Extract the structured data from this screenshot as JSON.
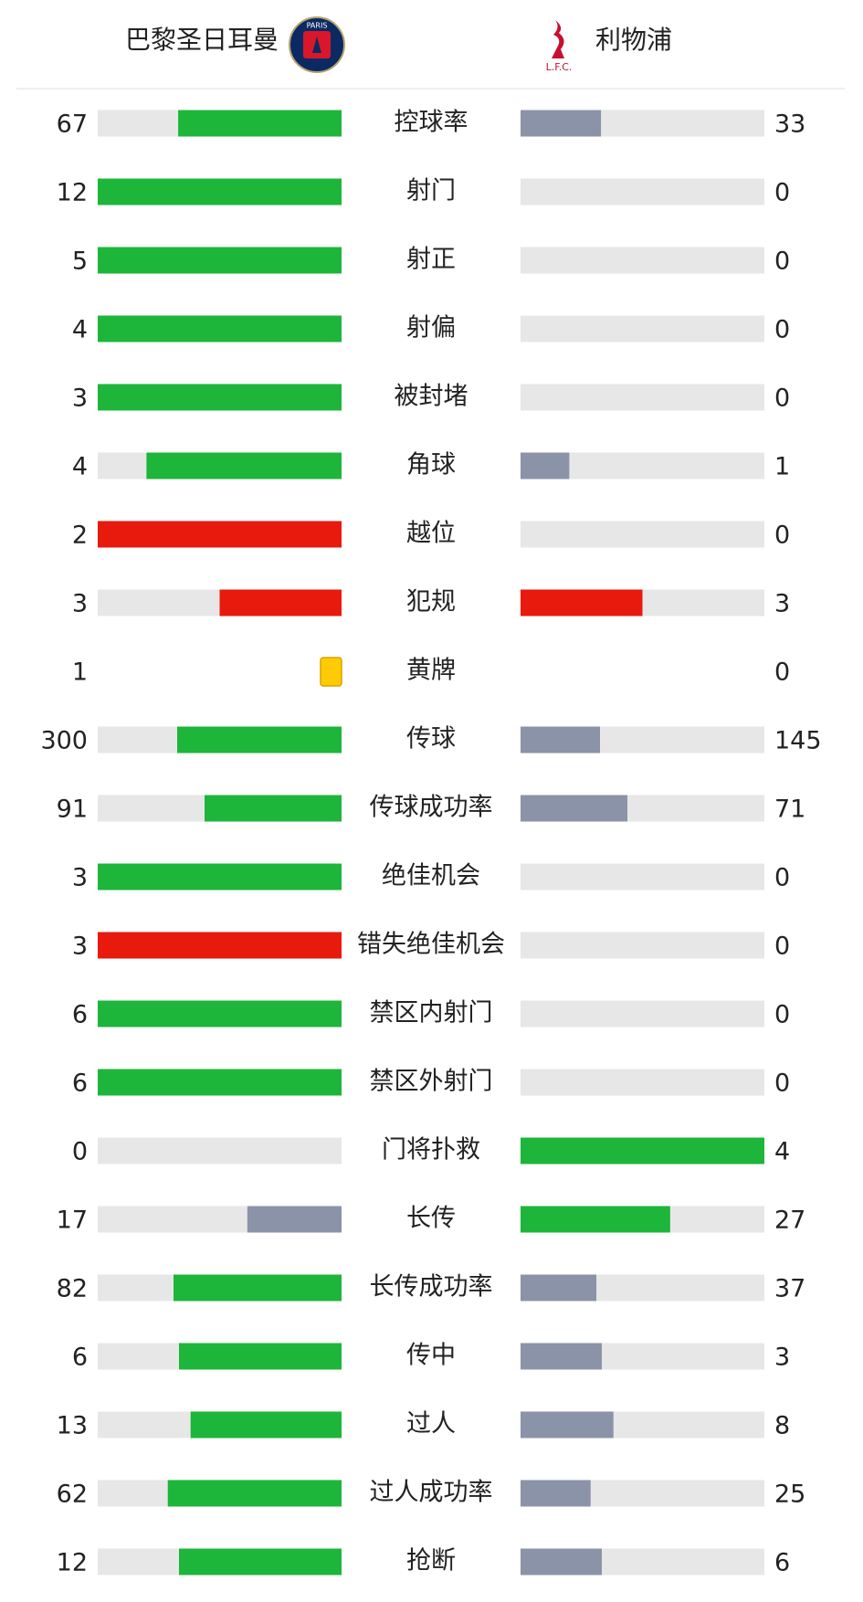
{
  "header": {
    "home": "巴黎圣日耳曼",
    "home_badge": "PARIS",
    "away": "利物浦",
    "away_badge": "L.F.C."
  },
  "track_color": "#e7e7e7",
  "rows": [
    {
      "label": "控球率",
      "home": 67,
      "away": 33,
      "home_color": "#1db53a",
      "away_color": "#8a93a7"
    },
    {
      "label": "射门",
      "home": 12,
      "away": 0,
      "home_color": "#1db53a",
      "away_color": "#8a93a7"
    },
    {
      "label": "射正",
      "home": 5,
      "away": 0,
      "home_color": "#1db53a",
      "away_color": "#8a93a7"
    },
    {
      "label": "射偏",
      "home": 4,
      "away": 0,
      "home_color": "#1db53a",
      "away_color": "#8a93a7"
    },
    {
      "label": "被封堵",
      "home": 3,
      "away": 0,
      "home_color": "#1db53a",
      "away_color": "#8a93a7"
    },
    {
      "label": "角球",
      "home": 4,
      "away": 1,
      "home_color": "#1db53a",
      "away_color": "#8a93a7"
    },
    {
      "label": "越位",
      "home": 2,
      "away": 0,
      "home_color": "#e8190d",
      "away_color": "#e8190d"
    },
    {
      "label": "犯规",
      "home": 3,
      "away": 3,
      "home_color": "#e8190d",
      "away_color": "#e8190d"
    },
    {
      "label": "黄牌",
      "home": 1,
      "away": 0,
      "kind": "card",
      "home_color": "#ffcb05",
      "away_color": "#ffcb05"
    },
    {
      "label": "传球",
      "home": 300,
      "away": 145,
      "home_color": "#1db53a",
      "away_color": "#8a93a7"
    },
    {
      "label": "传球成功率",
      "home": 91,
      "away": 71,
      "home_color": "#1db53a",
      "away_color": "#8a93a7"
    },
    {
      "label": "绝佳机会",
      "home": 3,
      "away": 0,
      "home_color": "#1db53a",
      "away_color": "#8a93a7"
    },
    {
      "label": "错失绝佳机会",
      "home": 3,
      "away": 0,
      "home_color": "#e8190d",
      "away_color": "#e8190d"
    },
    {
      "label": "禁区内射门",
      "home": 6,
      "away": 0,
      "home_color": "#1db53a",
      "away_color": "#8a93a7"
    },
    {
      "label": "禁区外射门",
      "home": 6,
      "away": 0,
      "home_color": "#1db53a",
      "away_color": "#8a93a7"
    },
    {
      "label": "门将扑救",
      "home": 0,
      "away": 4,
      "home_color": "#8a93a7",
      "away_color": "#1db53a"
    },
    {
      "label": "长传",
      "home": 17,
      "away": 27,
      "home_color": "#8a93a7",
      "away_color": "#1db53a"
    },
    {
      "label": "长传成功率",
      "home": 82,
      "away": 37,
      "home_color": "#1db53a",
      "away_color": "#8a93a7"
    },
    {
      "label": "传中",
      "home": 6,
      "away": 3,
      "home_color": "#1db53a",
      "away_color": "#8a93a7"
    },
    {
      "label": "过人",
      "home": 13,
      "away": 8,
      "home_color": "#1db53a",
      "away_color": "#8a93a7"
    },
    {
      "label": "过人成功率",
      "home": 62,
      "away": 25,
      "home_color": "#1db53a",
      "away_color": "#8a93a7"
    },
    {
      "label": "抢断",
      "home": 12,
      "away": 6,
      "home_color": "#1db53a",
      "away_color": "#8a93a7"
    }
  ]
}
